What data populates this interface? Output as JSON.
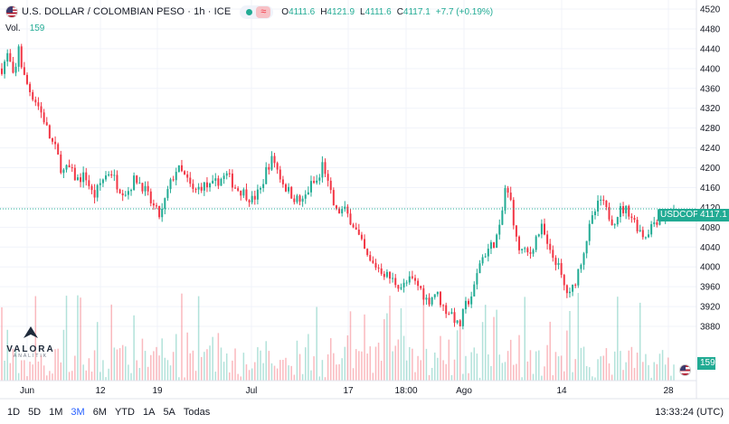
{
  "header": {
    "title": "U.S. DOLLAR / COLOMBIAN PESO · 1h · ICE",
    "wave_symbol": "≈",
    "ohlc": [
      {
        "k": "O",
        "v": "4111.6"
      },
      {
        "k": "H",
        "v": "4121.9"
      },
      {
        "k": "L",
        "v": "4111.6"
      },
      {
        "k": "C",
        "v": "4117.1"
      },
      {
        "k": "",
        "v": "+7.7 (+0.19%)"
      }
    ],
    "volume_label": "Vol.",
    "volume_value": "159"
  },
  "logo": {
    "name": "VALORA",
    "sub": "ANALITIK"
  },
  "price_axis": {
    "symbol_tag": "USDCOP",
    "last_price": "4117.1",
    "volume_tag": "159"
  },
  "timeframes": [
    "1D",
    "5D",
    "1M",
    "3M",
    "6M",
    "YTD",
    "1A",
    "5A",
    "Todas"
  ],
  "active_timeframe": "3M",
  "clock": "13:33:24 (UTC)",
  "colors": {
    "up": "#22ab94",
    "down": "#f23645",
    "text": "#131722",
    "accent": "#2962ff"
  },
  "chart_data": {
    "type": "candlestick",
    "title": "U.S. DOLLAR / COLOMBIAN PESO",
    "ylim": [
      3840,
      4520
    ],
    "y_ticks": [
      4520,
      4480,
      4440,
      4400,
      4360,
      4320,
      4280,
      4240,
      4200,
      4160,
      4120,
      4080,
      4040,
      4000,
      3960,
      3920,
      3880
    ],
    "x_ticks": [
      "Jun",
      "12",
      "19",
      "Jul",
      "17",
      "18:00",
      "Ago",
      "14",
      "28"
    ],
    "last_price": 4117.1,
    "close_path": [
      [
        0,
        4400
      ],
      [
        1.5,
        4430
      ],
      [
        3,
        4370
      ],
      [
        4,
        4450
      ],
      [
        5,
        4390
      ],
      [
        7,
        4350
      ],
      [
        8.5,
        4330
      ],
      [
        10,
        4300
      ],
      [
        11.5,
        4260
      ],
      [
        13,
        4235
      ],
      [
        14.5,
        4190
      ],
      [
        16,
        4200
      ],
      [
        18,
        4175
      ],
      [
        20,
        4185
      ],
      [
        22,
        4140
      ],
      [
        24,
        4175
      ],
      [
        26,
        4195
      ],
      [
        28,
        4160
      ],
      [
        30,
        4150
      ],
      [
        32,
        4180
      ],
      [
        34,
        4160
      ],
      [
        36,
        4125
      ],
      [
        38,
        4100
      ],
      [
        40,
        4160
      ],
      [
        42,
        4200
      ],
      [
        44,
        4180
      ],
      [
        46,
        4150
      ],
      [
        48,
        4165
      ],
      [
        50,
        4160
      ],
      [
        52,
        4175
      ],
      [
        54,
        4185
      ],
      [
        56,
        4160
      ],
      [
        58,
        4150
      ],
      [
        60,
        4135
      ],
      [
        62,
        4155
      ],
      [
        63.5,
        4200
      ],
      [
        65,
        4220
      ],
      [
        66.5,
        4185
      ],
      [
        68,
        4160
      ],
      [
        70,
        4140
      ],
      [
        72,
        4130
      ],
      [
        74,
        4165
      ],
      [
        76,
        4175
      ],
      [
        77,
        4215
      ],
      [
        78,
        4170
      ],
      [
        80,
        4110
      ],
      [
        82,
        4115
      ],
      [
        84,
        4090
      ],
      [
        86,
        4050
      ],
      [
        88,
        4010
      ],
      [
        90,
        4000
      ],
      [
        92,
        3985
      ],
      [
        94,
        3970
      ],
      [
        96,
        3960
      ],
      [
        98,
        3975
      ],
      [
        100,
        3960
      ],
      [
        102,
        3930
      ],
      [
        104,
        3950
      ],
      [
        106,
        3915
      ],
      [
        108,
        3905
      ],
      [
        109.5,
        3875
      ],
      [
        111,
        3920
      ],
      [
        113,
        3950
      ],
      [
        114.5,
        4010
      ],
      [
        116,
        4030
      ],
      [
        118,
        4050
      ],
      [
        119.5,
        4080
      ],
      [
        120.5,
        4160
      ],
      [
        122,
        4130
      ],
      [
        123.5,
        4040
      ],
      [
        125,
        4030
      ],
      [
        126.5,
        4025
      ],
      [
        128,
        4060
      ],
      [
        129.5,
        4080
      ],
      [
        131,
        4030
      ],
      [
        133,
        4010
      ],
      [
        134.5,
        3965
      ],
      [
        136,
        3940
      ],
      [
        137.5,
        3975
      ],
      [
        139,
        4020
      ],
      [
        140.5,
        4070
      ],
      [
        142,
        4110
      ],
      [
        143.5,
        4135
      ],
      [
        145,
        4110
      ],
      [
        146.5,
        4090
      ],
      [
        148,
        4115
      ],
      [
        150,
        4115
      ],
      [
        152,
        4085
      ],
      [
        154,
        4060
      ],
      [
        156,
        4090
      ],
      [
        158,
        4100
      ],
      [
        159.5,
        4105
      ],
      [
        161,
        4117.1
      ]
    ]
  }
}
